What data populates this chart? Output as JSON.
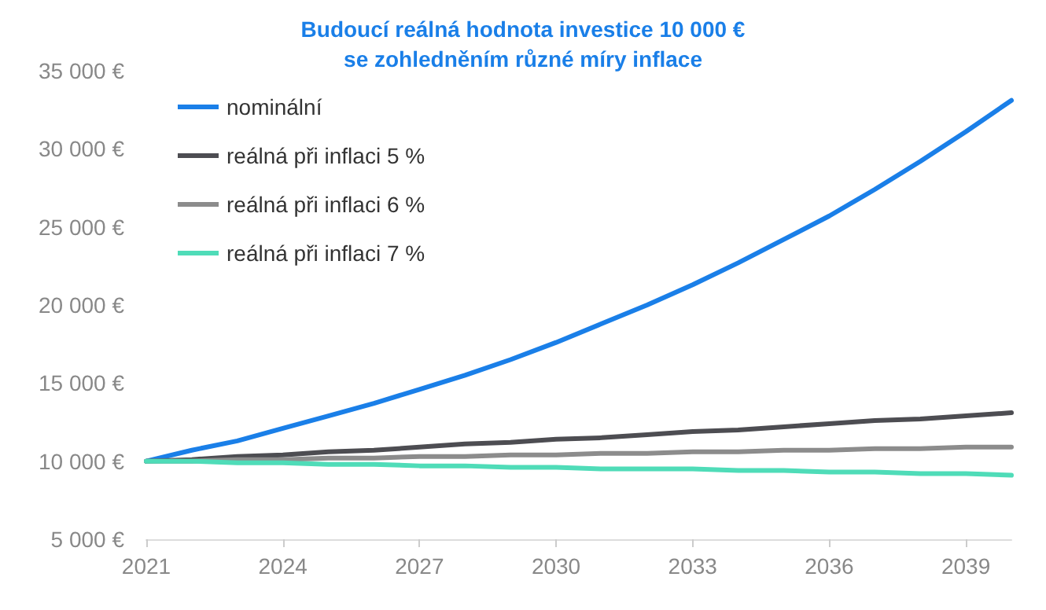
{
  "chart_data": {
    "type": "line",
    "title": "Budoucí reálná hodnota investice 10 000 €\nse zohledněním různé míry inflace",
    "x": [
      2021,
      2022,
      2023,
      2024,
      2025,
      2026,
      2027,
      2028,
      2029,
      2030,
      2031,
      2032,
      2033,
      2034,
      2035,
      2036,
      2037,
      2038,
      2039,
      2040
    ],
    "series": [
      {
        "name": "nominální",
        "color": "#1a7fe8",
        "values": [
          10000,
          10700,
          11300,
          12100,
          12900,
          13700,
          14600,
          15500,
          16500,
          17600,
          18800,
          20000,
          21300,
          22700,
          24200,
          25700,
          27400,
          29200,
          31100,
          33100
        ]
      },
      {
        "name": "reálná při inflaci 5 %",
        "color": "#4d4d52",
        "values": [
          10000,
          10100,
          10300,
          10400,
          10600,
          10700,
          10900,
          11100,
          11200,
          11400,
          11500,
          11700,
          11900,
          12000,
          12200,
          12400,
          12600,
          12700,
          12900,
          13100
        ]
      },
      {
        "name": "reálná při inflaci 6 %",
        "color": "#8c8c8c",
        "values": [
          10000,
          10000,
          10100,
          10100,
          10200,
          10200,
          10300,
          10300,
          10400,
          10400,
          10500,
          10500,
          10600,
          10600,
          10700,
          10700,
          10800,
          10800,
          10900,
          10900
        ]
      },
      {
        "name": "reálná při inflaci 7 %",
        "color": "#4fdcb8",
        "values": [
          10000,
          10000,
          9900,
          9900,
          9800,
          9800,
          9700,
          9700,
          9600,
          9600,
          9500,
          9500,
          9500,
          9400,
          9400,
          9300,
          9300,
          9200,
          9200,
          9100
        ]
      }
    ],
    "xlim": [
      2021,
      2040
    ],
    "xticks": [
      2021,
      2024,
      2027,
      2030,
      2033,
      2036,
      2039
    ],
    "ylim": [
      5000,
      35000
    ],
    "yticks": [
      {
        "value": 5000,
        "label": "5 000 €"
      },
      {
        "value": 10000,
        "label": "10 000 €"
      },
      {
        "value": 15000,
        "label": "15 000 €"
      },
      {
        "value": 20000,
        "label": "20 000 €"
      },
      {
        "value": 25000,
        "label": "25 000 €"
      },
      {
        "value": 30000,
        "label": "30 000 €"
      },
      {
        "value": 35000,
        "label": "35 000 €"
      }
    ],
    "grid": false,
    "legend": "top left",
    "marker": "none",
    "line_style": "solid"
  }
}
